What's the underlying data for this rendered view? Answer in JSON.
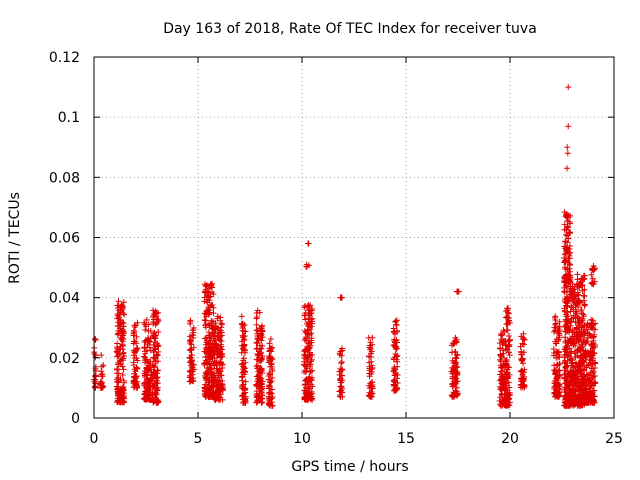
{
  "chart_data": {
    "type": "scatter",
    "title": "Day 163 of 2018, Rate Of TEC Index for receiver tuva",
    "xlabel": "GPS time / hours",
    "ylabel": "ROTI / TECUs",
    "xlim": [
      0,
      25
    ],
    "ylim": [
      0,
      0.12
    ],
    "xticks": [
      0,
      5,
      10,
      15,
      20,
      25
    ],
    "yticks": [
      0,
      0.02,
      0.04,
      0.06,
      0.08,
      0.1,
      0.12
    ],
    "xtick_labels": [
      "0",
      "5",
      "10",
      "15",
      "20",
      "25"
    ],
    "ytick_labels": [
      "0",
      "0.02",
      "0.04",
      "0.06",
      "0.08",
      "0.1",
      "0.12"
    ],
    "grid": true,
    "marker": "+",
    "color": "#e00000",
    "series": [
      {
        "name": "ROTI",
        "clusters": [
          {
            "x": [
              0.0,
              0.1
            ],
            "y": [
              0.009,
              0.027
            ]
          },
          {
            "x": [
              0.3,
              0.45
            ],
            "y": [
              0.01,
              0.021
            ]
          },
          {
            "x": [
              1.1,
              1.45
            ],
            "y": [
              0.005,
              0.039
            ]
          },
          {
            "x": [
              1.9,
              2.1
            ],
            "y": [
              0.01,
              0.032
            ]
          },
          {
            "x": [
              2.4,
              2.75
            ],
            "y": [
              0.006,
              0.033
            ]
          },
          {
            "x": [
              2.8,
              3.1
            ],
            "y": [
              0.005,
              0.036
            ]
          },
          {
            "x": [
              4.6,
              4.8
            ],
            "y": [
              0.012,
              0.034
            ]
          },
          {
            "x": [
              5.3,
              5.75
            ],
            "y": [
              0.007,
              0.045
            ]
          },
          {
            "x": [
              5.75,
              6.2
            ],
            "y": [
              0.006,
              0.034
            ]
          },
          {
            "x": [
              7.1,
              7.3
            ],
            "y": [
              0.005,
              0.034
            ]
          },
          {
            "x": [
              7.8,
              8.1
            ],
            "y": [
              0.005,
              0.037
            ]
          },
          {
            "x": [
              8.4,
              8.6
            ],
            "y": [
              0.004,
              0.027
            ]
          },
          {
            "x": [
              10.1,
              10.5
            ],
            "y": [
              0.006,
              0.038
            ]
          },
          {
            "x": [
              10.2,
              10.35
            ],
            "y": [
              0.05,
              0.051
            ]
          },
          {
            "x": [
              10.25,
              10.4
            ],
            "y": [
              0.058,
              0.058
            ]
          },
          {
            "x": [
              11.8,
              11.95
            ],
            "y": [
              0.007,
              0.024
            ]
          },
          {
            "x": [
              11.85,
              11.95
            ],
            "y": [
              0.04,
              0.04
            ]
          },
          {
            "x": [
              13.2,
              13.4
            ],
            "y": [
              0.007,
              0.027
            ]
          },
          {
            "x": [
              14.4,
              14.6
            ],
            "y": [
              0.009,
              0.033
            ]
          },
          {
            "x": [
              17.2,
              17.5
            ],
            "y": [
              0.007,
              0.027
            ]
          },
          {
            "x": [
              17.45,
              17.55
            ],
            "y": [
              0.042,
              0.042
            ]
          },
          {
            "x": [
              19.5,
              20.0
            ],
            "y": [
              0.004,
              0.03
            ]
          },
          {
            "x": [
              19.8,
              20.0
            ],
            "y": [
              0.031,
              0.037
            ]
          },
          {
            "x": [
              20.5,
              20.7
            ],
            "y": [
              0.01,
              0.029
            ]
          },
          {
            "x": [
              22.1,
              22.4
            ],
            "y": [
              0.007,
              0.034
            ]
          },
          {
            "x": [
              22.6,
              23.2
            ],
            "y": [
              0.004,
              0.045
            ]
          },
          {
            "x": [
              22.6,
              22.9
            ],
            "y": [
              0.045,
              0.07
            ]
          },
          {
            "x": [
              23.2,
              23.6
            ],
            "y": [
              0.004,
              0.048
            ]
          },
          {
            "x": [
              23.6,
              24.1
            ],
            "y": [
              0.005,
              0.033
            ]
          },
          {
            "x": [
              23.9,
              24.1
            ],
            "y": [
              0.044,
              0.051
            ]
          }
        ],
        "points": [
          {
            "x": 22.8,
            "y": 0.11
          },
          {
            "x": 22.8,
            "y": 0.097
          },
          {
            "x": 22.75,
            "y": 0.09
          },
          {
            "x": 22.78,
            "y": 0.088
          },
          {
            "x": 22.74,
            "y": 0.083
          }
        ]
      }
    ]
  }
}
